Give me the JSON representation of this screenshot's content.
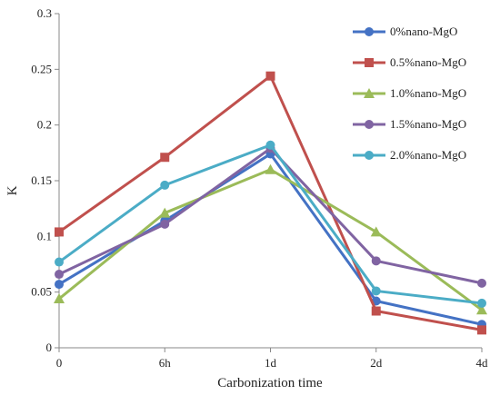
{
  "chart_data": {
    "type": "line",
    "categories": [
      "0",
      "6h",
      "1d",
      "2d",
      "4d"
    ],
    "xlabel": "Carbonization time",
    "ylabel": "K",
    "ylim": [
      0,
      0.3
    ],
    "yticks": [
      "0",
      "0.05",
      "0.1",
      "0.15",
      "0.2",
      "0.25",
      "0.3"
    ],
    "grid": false,
    "legend_position": "top-right",
    "series": [
      {
        "name": "0%nano-MgO",
        "values": [
          0.057,
          0.114,
          0.174,
          0.042,
          0.021
        ],
        "color": "#4472C4",
        "marker": "circle"
      },
      {
        "name": "0.5%nano-MgO",
        "values": [
          0.104,
          0.171,
          0.244,
          0.033,
          0.016
        ],
        "color": "#C0504D",
        "marker": "square"
      },
      {
        "name": "1.0%nano-MgO",
        "values": [
          0.044,
          0.121,
          0.16,
          0.104,
          0.034
        ],
        "color": "#9BBB59",
        "marker": "triangle"
      },
      {
        "name": "1.5%nano-MgO",
        "values": [
          0.066,
          0.111,
          0.179,
          0.078,
          0.058
        ],
        "color": "#8064A2",
        "marker": "circle"
      },
      {
        "name": "2.0%nano-MgO",
        "values": [
          0.077,
          0.146,
          0.182,
          0.051,
          0.04
        ],
        "color": "#4BACC6",
        "marker": "circle"
      }
    ]
  }
}
